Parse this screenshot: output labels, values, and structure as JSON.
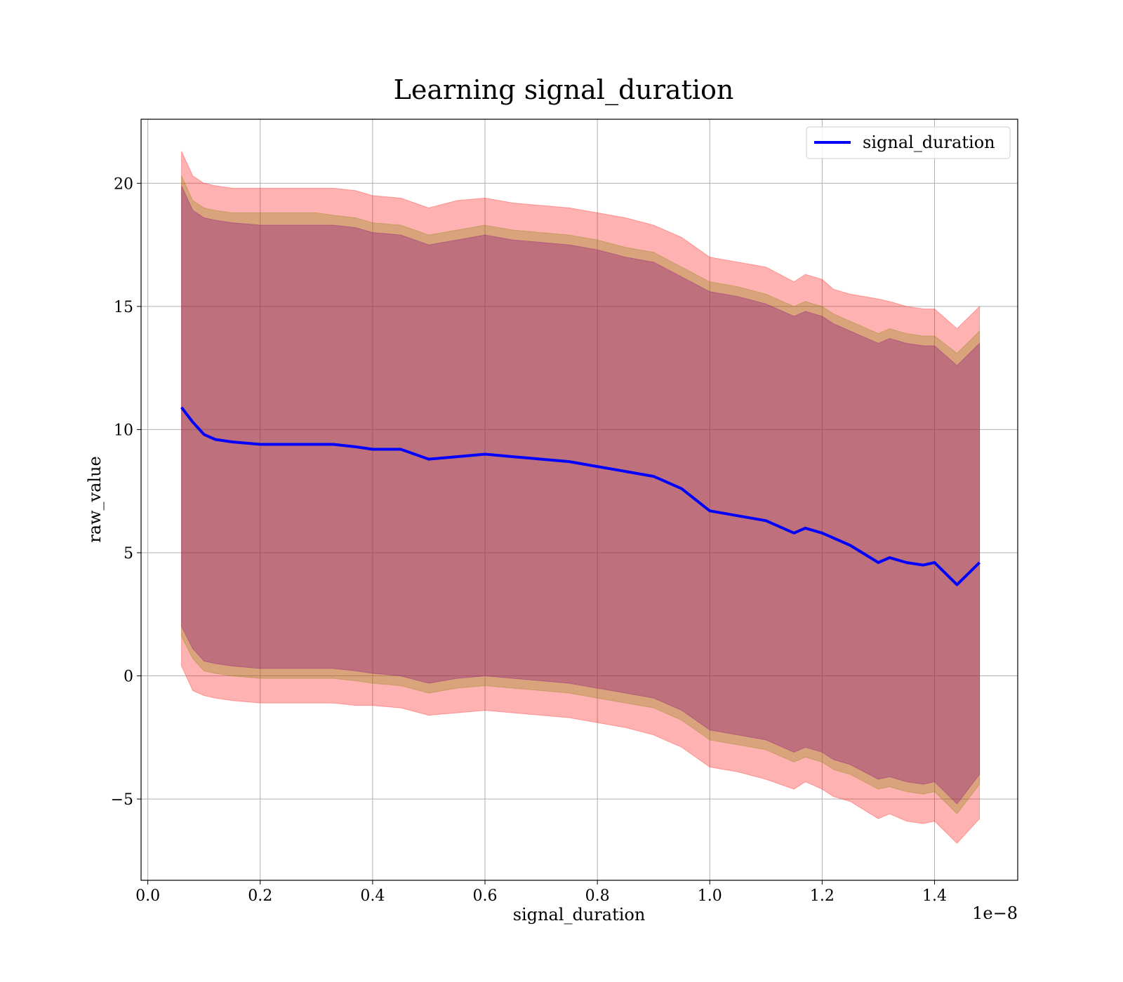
{
  "chart_data": {
    "type": "line",
    "title": "Learning signal_duration",
    "xlabel": "signal_duration",
    "ylabel": "raw_value",
    "x_offset_label": "1e−8",
    "xlim": [
      -0.012,
      1.548
    ],
    "ylim": [
      -8.3,
      22.6
    ],
    "xticks": [
      0.0,
      0.2,
      0.4,
      0.6,
      0.8,
      1.0,
      1.2,
      1.4
    ],
    "xtick_labels": [
      "0.0",
      "0.2",
      "0.4",
      "0.6",
      "0.8",
      "1.0",
      "1.2",
      "1.4"
    ],
    "yticks": [
      -5,
      0,
      5,
      10,
      15,
      20
    ],
    "ytick_labels": [
      "−5",
      "0",
      "5",
      "10",
      "15",
      "20"
    ],
    "grid": true,
    "legend_position": "top-right",
    "colors": {
      "mean_line": "#0000ff",
      "outer_band": "#ff0000",
      "middle_band": "#808000",
      "inner_band": "#800080"
    },
    "x": [
      0.06,
      0.08,
      0.1,
      0.12,
      0.15,
      0.2,
      0.25,
      0.3,
      0.33,
      0.37,
      0.4,
      0.45,
      0.5,
      0.55,
      0.6,
      0.65,
      0.7,
      0.75,
      0.8,
      0.85,
      0.9,
      0.95,
      1.0,
      1.05,
      1.1,
      1.15,
      1.17,
      1.2,
      1.22,
      1.25,
      1.3,
      1.32,
      1.35,
      1.38,
      1.4,
      1.44,
      1.48
    ],
    "series": [
      {
        "name": "signal_duration",
        "values": [
          10.9,
          10.3,
          9.8,
          9.6,
          9.5,
          9.4,
          9.4,
          9.4,
          9.4,
          9.3,
          9.2,
          9.2,
          8.8,
          8.9,
          9.0,
          8.9,
          8.8,
          8.7,
          8.5,
          8.3,
          8.1,
          7.6,
          6.7,
          6.5,
          6.3,
          5.8,
          6.0,
          5.8,
          5.6,
          5.3,
          4.6,
          4.8,
          4.6,
          4.5,
          4.6,
          3.7,
          4.6
        ]
      }
    ],
    "bands": [
      {
        "color_key": "outer_band",
        "upper": [
          21.3,
          20.3,
          20.0,
          19.9,
          19.8,
          19.8,
          19.8,
          19.8,
          19.8,
          19.7,
          19.5,
          19.4,
          19.0,
          19.3,
          19.4,
          19.2,
          19.1,
          19.0,
          18.8,
          18.6,
          18.3,
          17.8,
          17.0,
          16.8,
          16.6,
          16.0,
          16.3,
          16.1,
          15.7,
          15.5,
          15.3,
          15.2,
          15.0,
          14.9,
          14.9,
          14.1,
          15.0
        ],
        "lower": [
          0.4,
          -0.6,
          -0.8,
          -0.9,
          -1.0,
          -1.1,
          -1.1,
          -1.1,
          -1.1,
          -1.2,
          -1.2,
          -1.3,
          -1.6,
          -1.5,
          -1.4,
          -1.5,
          -1.6,
          -1.7,
          -1.9,
          -2.1,
          -2.4,
          -2.9,
          -3.7,
          -3.9,
          -4.2,
          -4.6,
          -4.3,
          -4.6,
          -4.9,
          -5.1,
          -5.8,
          -5.6,
          -5.9,
          -6.0,
          -5.9,
          -6.8,
          -5.8
        ]
      },
      {
        "color_key": "middle_band",
        "upper": [
          20.3,
          19.3,
          19.0,
          18.9,
          18.8,
          18.8,
          18.8,
          18.8,
          18.7,
          18.6,
          18.4,
          18.3,
          17.9,
          18.1,
          18.3,
          18.1,
          18.0,
          17.9,
          17.7,
          17.4,
          17.2,
          16.6,
          16.0,
          15.8,
          15.5,
          15.0,
          15.2,
          15.0,
          14.7,
          14.4,
          13.9,
          14.1,
          13.9,
          13.8,
          13.8,
          13.1,
          14.0
        ],
        "lower": [
          1.6,
          0.7,
          0.2,
          0.1,
          0.0,
          -0.1,
          -0.1,
          -0.1,
          -0.1,
          -0.2,
          -0.3,
          -0.4,
          -0.7,
          -0.5,
          -0.4,
          -0.5,
          -0.6,
          -0.7,
          -0.9,
          -1.1,
          -1.3,
          -1.8,
          -2.6,
          -2.8,
          -3.0,
          -3.5,
          -3.3,
          -3.5,
          -3.8,
          -4.0,
          -4.6,
          -4.5,
          -4.7,
          -4.8,
          -4.7,
          -5.6,
          -4.4
        ]
      },
      {
        "color_key": "inner_band",
        "upper": [
          19.9,
          18.9,
          18.6,
          18.5,
          18.4,
          18.3,
          18.3,
          18.3,
          18.3,
          18.2,
          18.0,
          17.9,
          17.5,
          17.7,
          17.9,
          17.7,
          17.6,
          17.5,
          17.3,
          17.0,
          16.8,
          16.2,
          15.6,
          15.4,
          15.1,
          14.6,
          14.8,
          14.6,
          14.3,
          14.0,
          13.5,
          13.7,
          13.5,
          13.4,
          13.4,
          12.6,
          13.5
        ],
        "lower": [
          2.0,
          1.1,
          0.6,
          0.5,
          0.4,
          0.3,
          0.3,
          0.3,
          0.3,
          0.2,
          0.1,
          0.0,
          -0.3,
          -0.1,
          0.0,
          -0.1,
          -0.2,
          -0.3,
          -0.5,
          -0.7,
          -0.9,
          -1.4,
          -2.2,
          -2.4,
          -2.6,
          -3.1,
          -2.9,
          -3.1,
          -3.4,
          -3.6,
          -4.2,
          -4.1,
          -4.3,
          -4.4,
          -4.3,
          -5.2,
          -4.0
        ]
      }
    ]
  }
}
